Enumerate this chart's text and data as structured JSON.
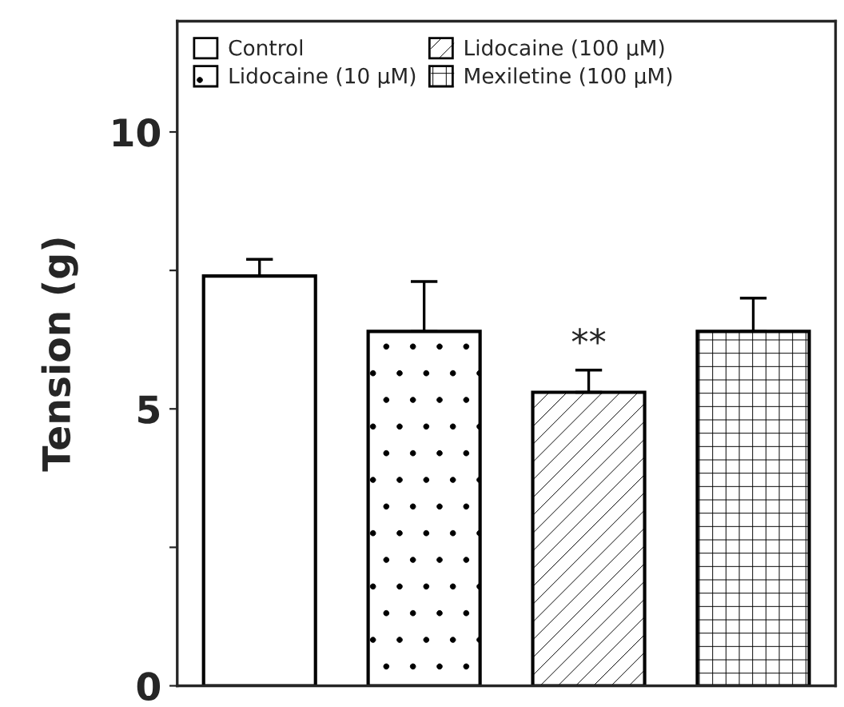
{
  "chart_data": {
    "type": "bar",
    "ylabel": "Tension (g)",
    "categories": [
      null,
      null,
      null,
      null
    ],
    "series": [
      {
        "name": "Control",
        "color": "#ffffff",
        "values": [
          7.4,
          null,
          null,
          null
        ],
        "errors": [
          0.3,
          null,
          null,
          null
        ]
      },
      {
        "name": "Lidocaine (10 μM)",
        "color": "#ffffff",
        "values": [
          null,
          6.4,
          null,
          null
        ],
        "errors": [
          null,
          0.9,
          null,
          null
        ]
      },
      {
        "name": "Lidocaine (100 μM)",
        "color": "#ffffff",
        "values": [
          null,
          null,
          5.3,
          null
        ],
        "errors": [
          null,
          null,
          0.4,
          null
        ],
        "value_labels": [
          null,
          null,
          "**",
          null
        ]
      },
      {
        "name": "Mexiletine (100 μM)",
        "color": "#ffffff",
        "values": [
          null,
          null,
          null,
          6.4
        ],
        "errors": [
          null,
          null,
          null,
          0.6
        ]
      }
    ],
    "ylim": [
      0,
      12
    ],
    "yticks": [
      0,
      {
        "value": 2.5,
        "label": null
      },
      5,
      {
        "value": 7.5,
        "label": null
      },
      10
    ],
    "grid": false,
    "legend": "top left"
  }
}
